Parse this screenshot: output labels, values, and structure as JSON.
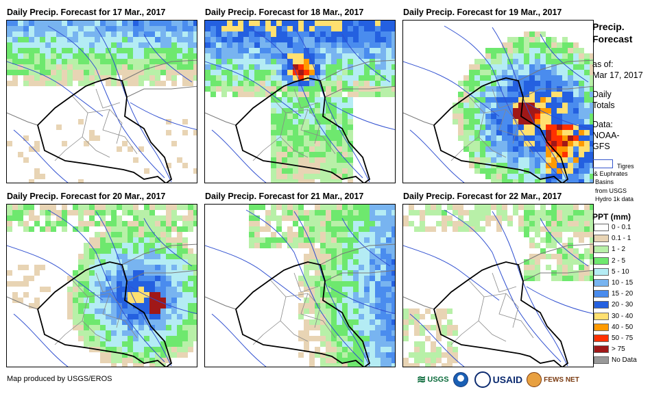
{
  "panels": [
    {
      "title": "Daily Precip. Forecast for 17 Mar., 2017",
      "pattern": "north-light"
    },
    {
      "title": "Daily Precip. Forecast for 18 Mar., 2017",
      "pattern": "north-heavy"
    },
    {
      "title": "Daily Precip. Forecast for 19 Mar., 2017",
      "pattern": "east-heavy"
    },
    {
      "title": "Daily Precip. Forecast for 20 Mar., 2017",
      "pattern": "center-moderate"
    },
    {
      "title": "Daily Precip. Forecast for 21 Mar., 2017",
      "pattern": "east-light"
    },
    {
      "title": "Daily Precip. Forecast for 22 Mar., 2017",
      "pattern": "sparse"
    }
  ],
  "sidebar": {
    "title_line1": "Precip.",
    "title_line2": "Forecast",
    "asof_label": "as of:",
    "asof_date": "Mar 17, 2017",
    "daily_line1": "Daily",
    "daily_line2": "Totals",
    "data_label": "Data:",
    "data_source1": "NOAA-",
    "data_source2": "GFS",
    "basin_line1": "Tigres",
    "basin_line2": "& Euphrates",
    "basin_line3": "Basins",
    "basin_line4": "from USGS",
    "basin_line5": "Hydro 1k data"
  },
  "legend": {
    "title": "PPT (mm)",
    "items": [
      {
        "label": "0 - 0.1",
        "color": "#ffffff"
      },
      {
        "label": "0.1 - 1",
        "color": "#e8d4b4"
      },
      {
        "label": "1 - 2",
        "color": "#b8f0a8"
      },
      {
        "label": "2 - 5",
        "color": "#6ee86e"
      },
      {
        "label": "5 - 10",
        "color": "#b4ecf4"
      },
      {
        "label": "10 - 15",
        "color": "#78b4f0"
      },
      {
        "label": "15 - 20",
        "color": "#4a8cee"
      },
      {
        "label": "20 - 30",
        "color": "#2460e0"
      },
      {
        "label": "30 - 40",
        "color": "#ffe070"
      },
      {
        "label": "40 - 50",
        "color": "#ff9a00"
      },
      {
        "label": "50 - 75",
        "color": "#ff3000"
      },
      {
        "label": "> 75",
        "color": "#a01818"
      },
      {
        "label": "No Data",
        "color": "#999999"
      }
    ]
  },
  "footer": {
    "credit": "Map produced by USGS/EROS"
  },
  "logos": {
    "usgs": "USGS",
    "usaid": "USAID",
    "fewsnet": "FEWS NET"
  }
}
